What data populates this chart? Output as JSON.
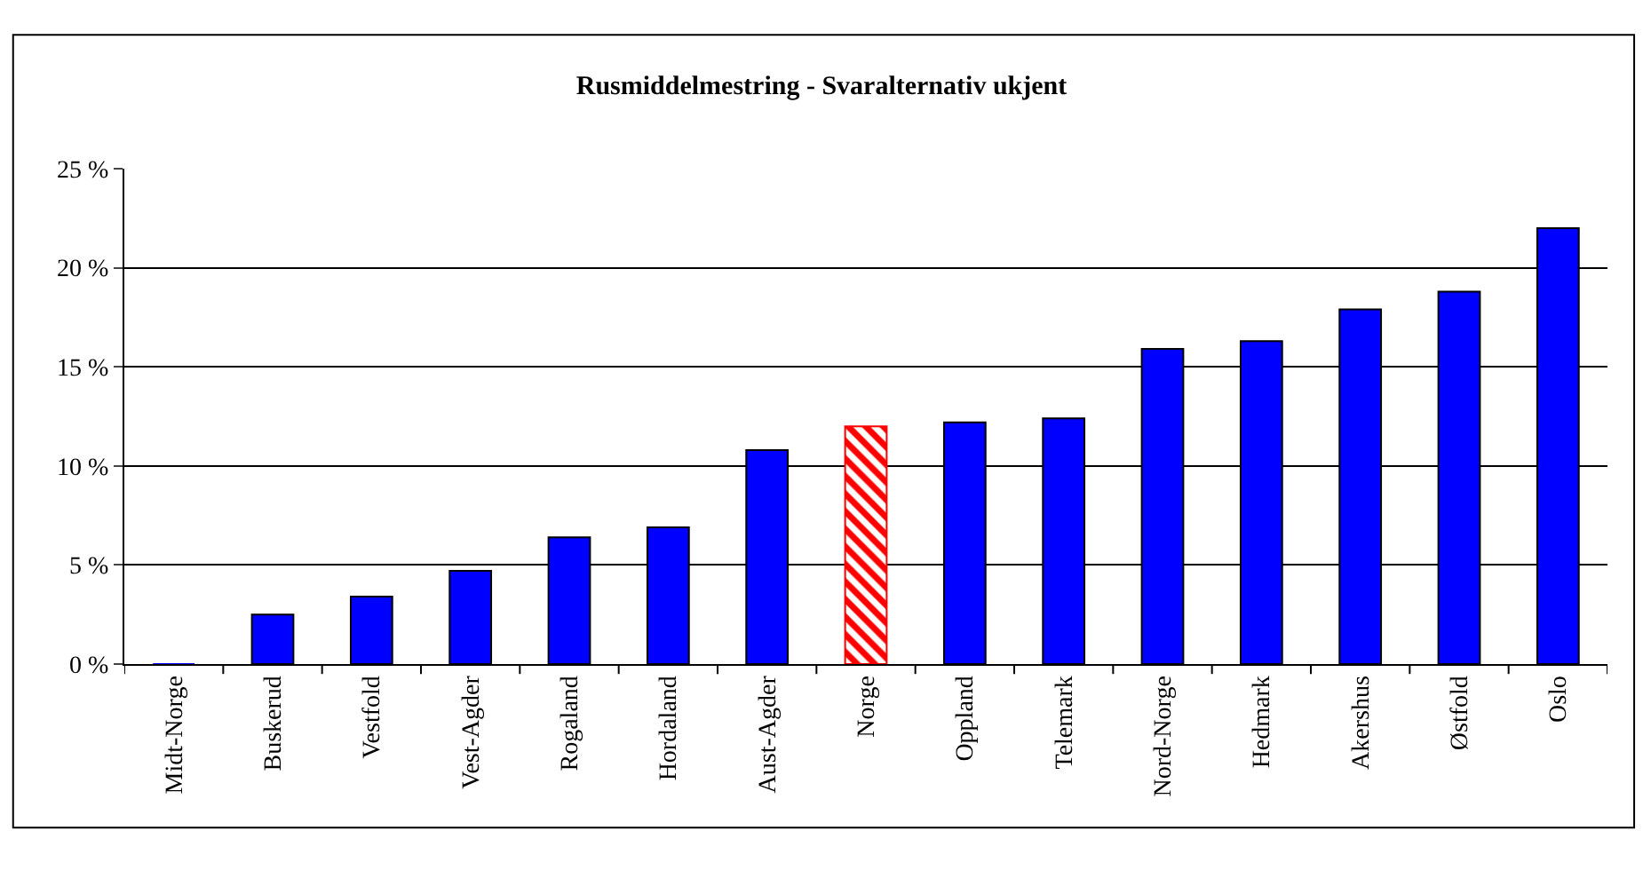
{
  "chart_data": {
    "type": "bar",
    "title": "Rusmiddelmestring - Svaralternativ ukjent",
    "categories": [
      "Midt-Norge",
      "Buskerud",
      "Vestfold",
      "Vest-Agder",
      "Rogaland",
      "Hordaland",
      "Aust-Agder",
      "Norge",
      "Oppland",
      "Telemark",
      "Nord-Norge",
      "Hedmark",
      "Akershus",
      "Østfold",
      "Oslo"
    ],
    "values": [
      0,
      2.5,
      3.4,
      4.7,
      6.4,
      6.9,
      10.8,
      12.0,
      12.2,
      12.4,
      15.9,
      16.3,
      17.9,
      18.8,
      22.0
    ],
    "colors": [
      "#0000ff",
      "#0000ff",
      "#0000ff",
      "#0000ff",
      "#0000ff",
      "#0000ff",
      "#0000ff",
      "#ff0000",
      "#0000ff",
      "#0000ff",
      "#0000ff",
      "#0000ff",
      "#0000ff",
      "#0000ff",
      "#0000ff"
    ],
    "ylim": [
      0,
      25
    ],
    "yticks": [
      {
        "value": 0,
        "label": "0 %"
      },
      {
        "value": 5,
        "label": "5 %"
      },
      {
        "value": 10,
        "label": "10 %"
      },
      {
        "value": 15,
        "label": "15 %"
      },
      {
        "value": 20,
        "label": "20 %"
      },
      {
        "value": 25,
        "label": "25 %"
      }
    ],
    "grid": "y"
  }
}
